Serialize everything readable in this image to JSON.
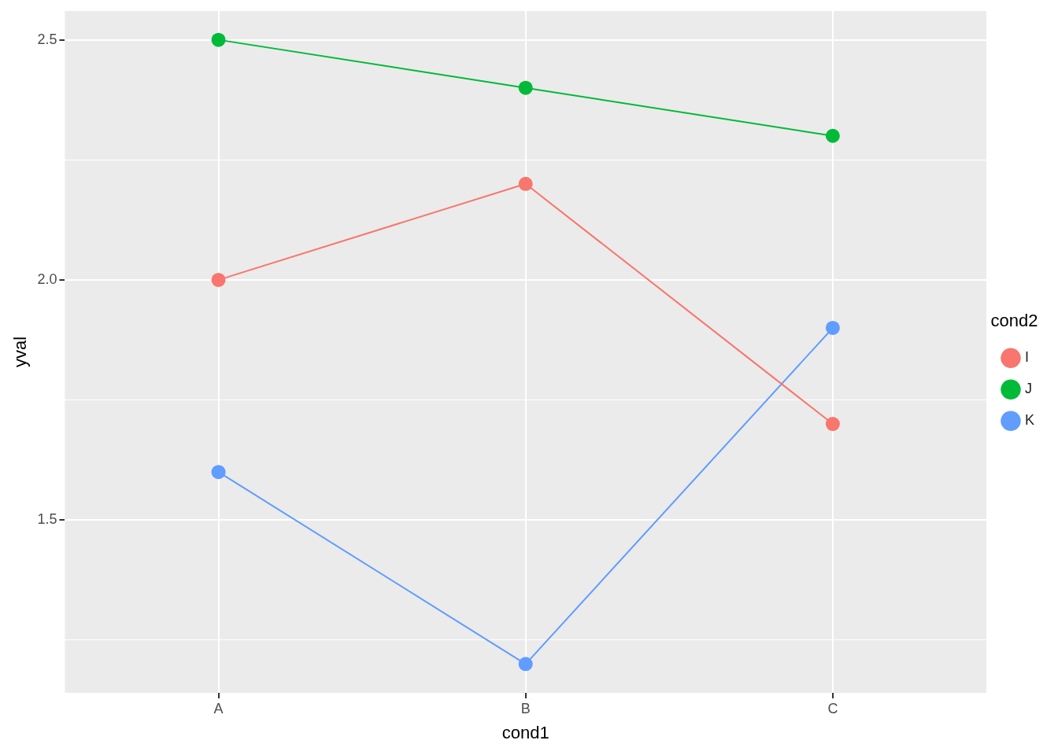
{
  "chart_data": {
    "type": "line",
    "xlabel": "cond1",
    "ylabel": "yval",
    "legend_title": "cond2",
    "categories": [
      "A",
      "B",
      "C"
    ],
    "series": [
      {
        "name": "I",
        "color": "#f8766d",
        "values": [
          2.0,
          2.2,
          1.7
        ]
      },
      {
        "name": "J",
        "color": "#00ba38",
        "values": [
          2.5,
          2.4,
          2.3
        ]
      },
      {
        "name": "K",
        "color": "#619cff",
        "values": [
          1.6,
          1.2,
          1.9
        ]
      }
    ],
    "ylim": [
      1.14,
      2.56
    ],
    "yticks": [
      {
        "value": 1.25,
        "label": null
      },
      {
        "value": 1.5,
        "label": "1.5"
      },
      {
        "value": 1.75,
        "label": null
      },
      {
        "value": 2,
        "label": "2.0"
      },
      {
        "value": 2.25,
        "label": null
      },
      {
        "value": 2.5,
        "label": "2.5"
      }
    ],
    "grid": true,
    "legend": "right",
    "marker": "circle",
    "line_style": "solid"
  }
}
